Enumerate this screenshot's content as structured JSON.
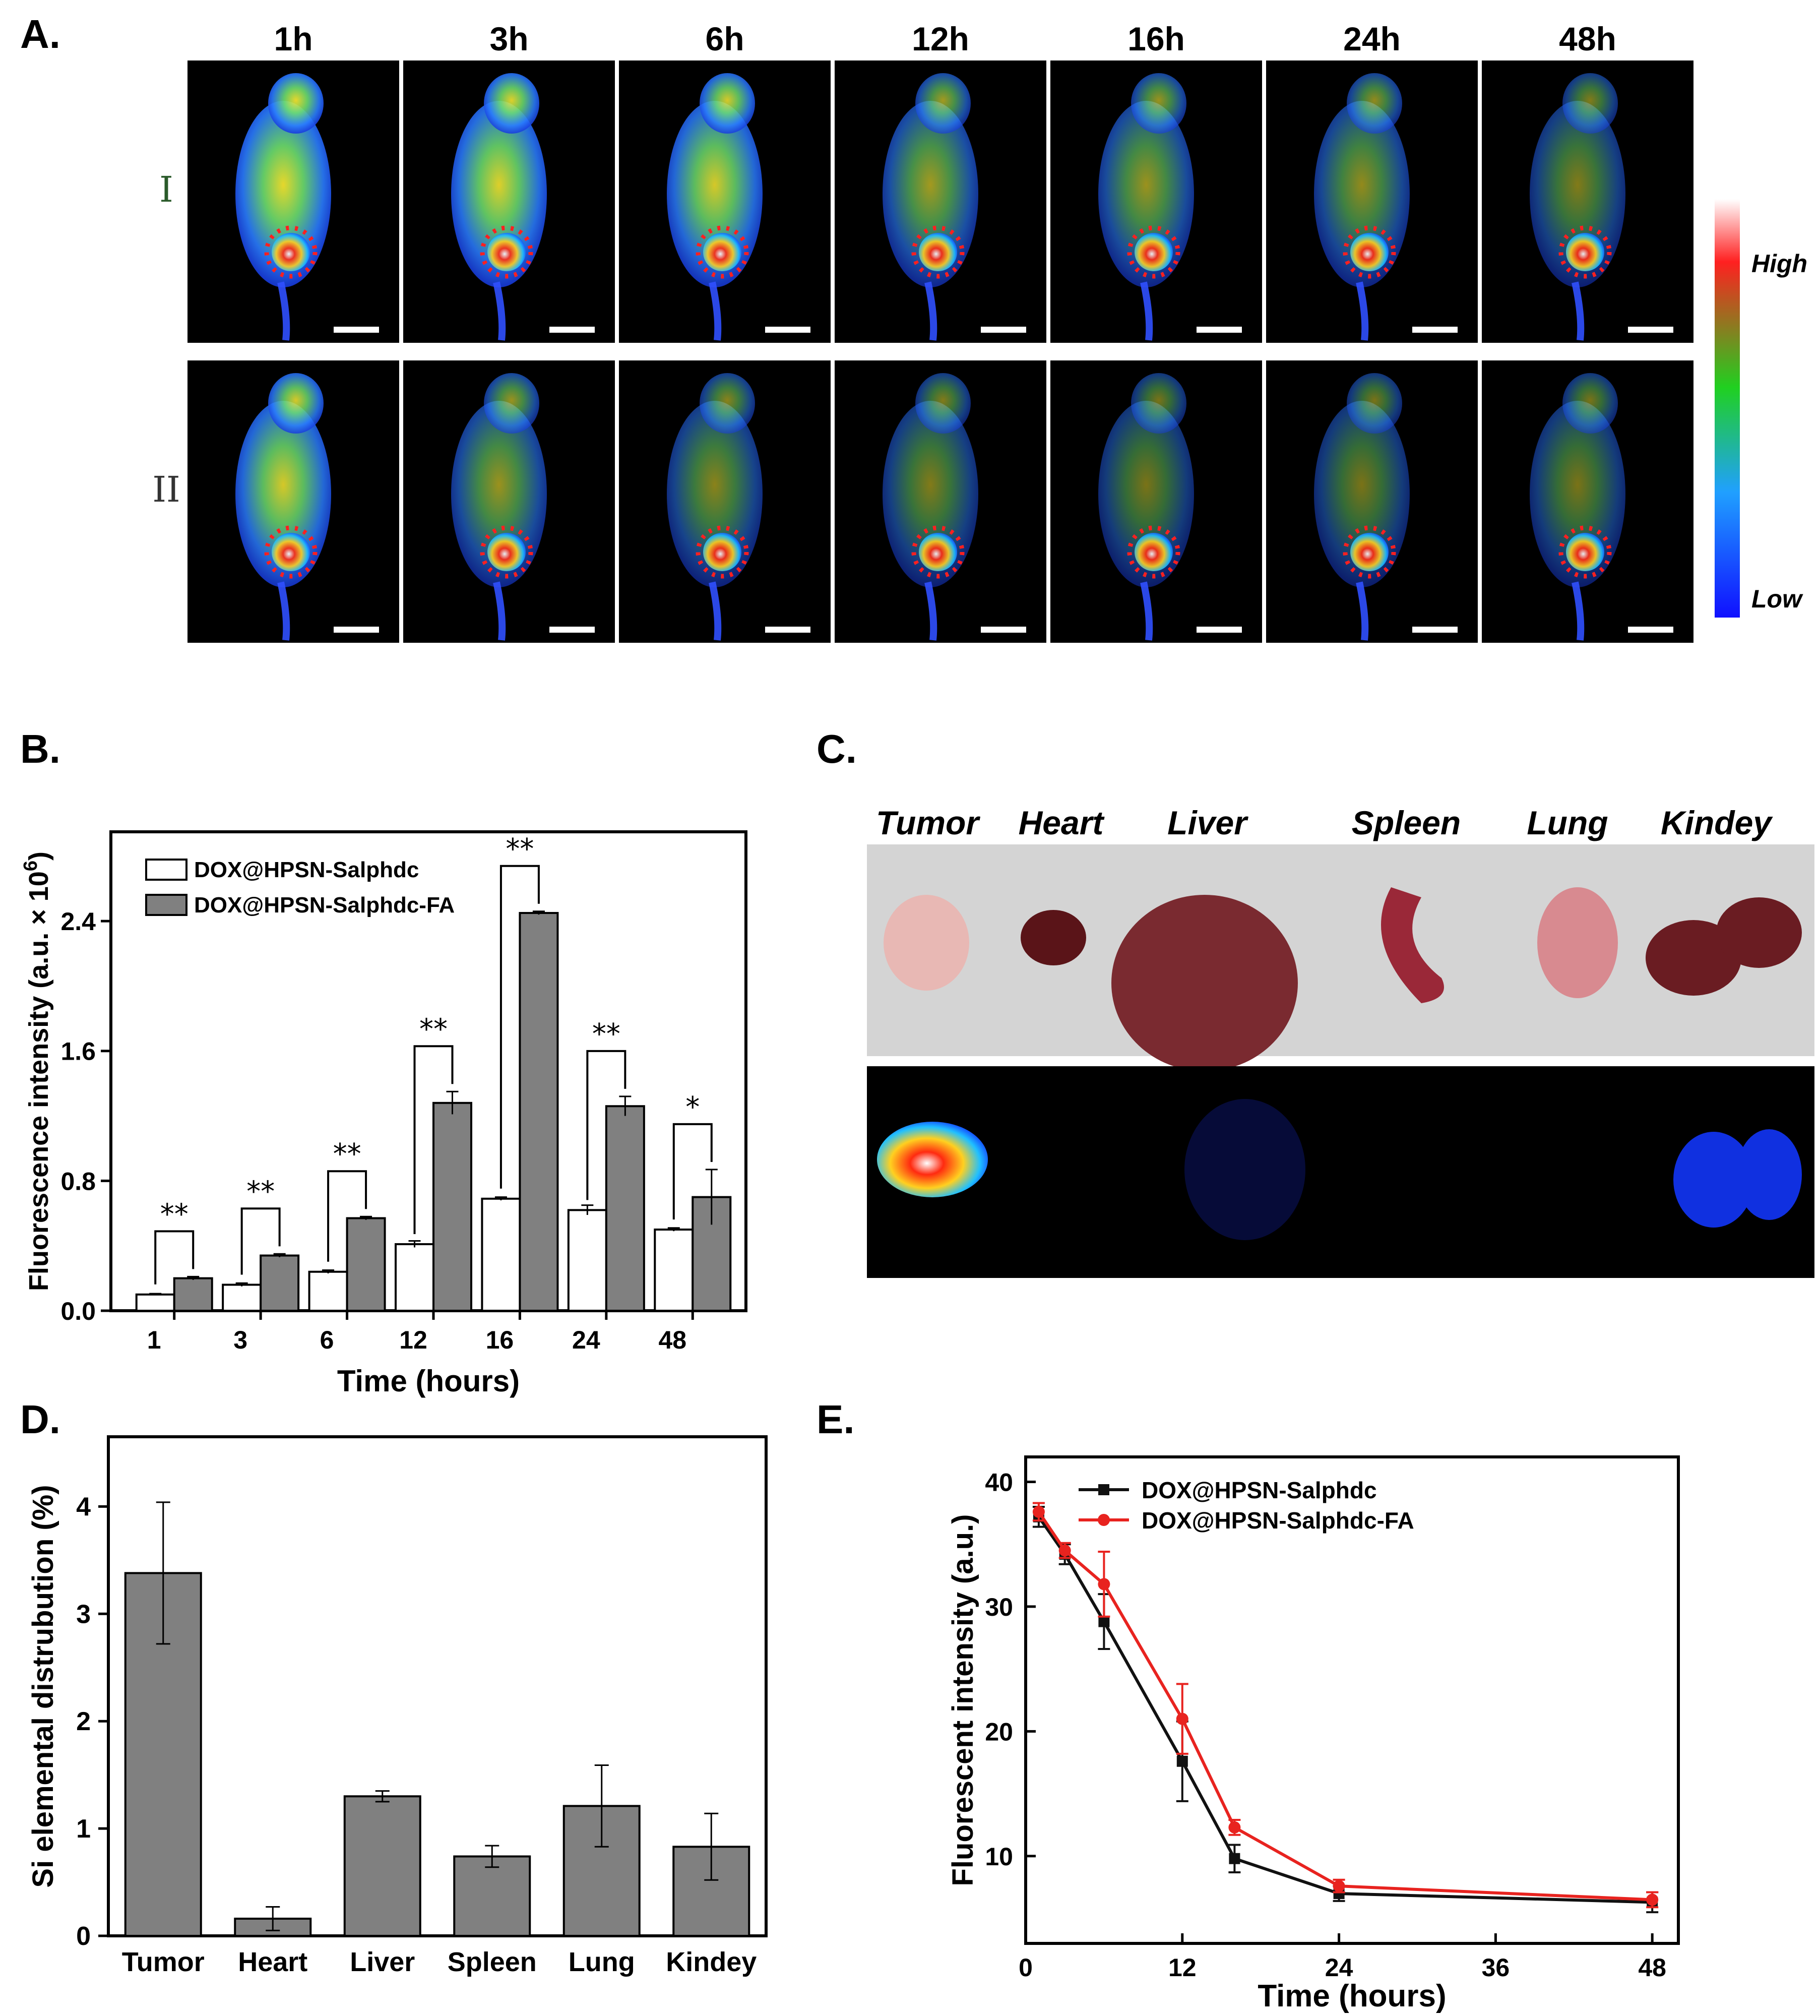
{
  "panels": {
    "a": {
      "letter": "A.",
      "timepoints": [
        "1h",
        "3h",
        "6h",
        "12h",
        "16h",
        "24h",
        "48h"
      ],
      "rows": [
        "I",
        "II"
      ],
      "scale_high": "High",
      "scale_low": "Low",
      "brightness": {
        "I": [
          0.85,
          0.8,
          0.75,
          0.45,
          0.4,
          0.35,
          0.25
        ],
        "II": [
          0.75,
          0.4,
          0.3,
          0.25,
          0.2,
          0.2,
          0.2
        ]
      }
    },
    "b": {
      "letter": "B."
    },
    "c": {
      "letter": "C.",
      "organs": [
        "Tumor",
        "Heart",
        "Liver",
        "Spleen",
        "Lung",
        "Kindey"
      ],
      "organ_colors": {
        "tumor": "#e8b8b4",
        "heart": "#5a1418",
        "liver": "#7a2a30",
        "spleen": "#9a2838",
        "lung": "#d88a90",
        "kidney": "#6a1c22",
        "background": "#d4d4d4"
      }
    },
    "d": {
      "letter": "D."
    },
    "e": {
      "letter": "E."
    }
  },
  "chart_data": [
    {
      "id": "B",
      "type": "bar",
      "categories": [
        "1",
        "3",
        "6",
        "12",
        "16",
        "24",
        "48"
      ],
      "series": [
        {
          "name": "DOX@HPSN-Salphdc",
          "values": [
            0.1,
            0.16,
            0.24,
            0.41,
            0.69,
            0.62,
            0.5
          ],
          "errors": [
            0.005,
            0.01,
            0.01,
            0.02,
            0.01,
            0.03,
            0.01
          ],
          "color": "#ffffff"
        },
        {
          "name": "DOX@HPSN-Salphdc-FA",
          "values": [
            0.2,
            0.34,
            0.57,
            1.28,
            2.45,
            1.26,
            0.7
          ],
          "errors": [
            0.01,
            0.01,
            0.01,
            0.07,
            0.01,
            0.06,
            0.17
          ],
          "color": "#808080"
        }
      ],
      "significance": [
        "**",
        "**",
        "**",
        "**",
        "**",
        "**",
        "*"
      ],
      "xlabel": "Time (hours)",
      "ylabel": "Fluorescence intensity (a.u. × 10",
      "ylabel_sup": "6",
      "ylabel_end": ")",
      "yticks": [
        "0.0",
        "0.8",
        "1.6",
        "2.4"
      ],
      "ylim": [
        0,
        2.95
      ]
    },
    {
      "id": "D",
      "type": "bar",
      "categories": [
        "Tumor",
        "Heart",
        "Liver",
        "Spleen",
        "Lung",
        "Kindey"
      ],
      "values": [
        3.38,
        0.16,
        1.3,
        0.74,
        1.21,
        0.83
      ],
      "errors": [
        0.66,
        0.11,
        0.05,
        0.1,
        0.38,
        0.31
      ],
      "color": "#808080",
      "ylabel": "Si elemental distrubution (%)",
      "yticks": [
        "0",
        "1",
        "2",
        "3",
        "4"
      ],
      "ylim": [
        0,
        4.65
      ]
    },
    {
      "id": "E",
      "type": "line",
      "series": [
        {
          "name": "DOX@HPSN-Salphdc",
          "x": [
            1,
            3,
            6,
            12,
            16,
            24,
            48
          ],
          "y": [
            37.2,
            34.2,
            28.8,
            17.6,
            9.8,
            7.0,
            6.3
          ],
          "errors": [
            0.8,
            0.8,
            2.2,
            3.2,
            1.1,
            0.6,
            0.8
          ],
          "color": "#111111"
        },
        {
          "name": "DOX@HPSN-Salphdc-FA",
          "x": [
            1,
            3,
            6,
            12,
            16,
            24,
            48
          ],
          "y": [
            37.6,
            34.5,
            31.8,
            21.0,
            12.3,
            7.6,
            6.5
          ],
          "errors": [
            0.7,
            0.6,
            2.6,
            2.8,
            0.6,
            0.5,
            0.6
          ],
          "color": "#e8231f"
        }
      ],
      "xlabel": "Time (hours)",
      "ylabel": "Fluorescent intensity (a.u.)",
      "xticks": [
        "0",
        "12",
        "24",
        "36",
        "48"
      ],
      "yticks": [
        "10",
        "20",
        "30",
        "40"
      ],
      "xlim": [
        0,
        50
      ],
      "ylim": [
        3,
        42
      ]
    }
  ]
}
